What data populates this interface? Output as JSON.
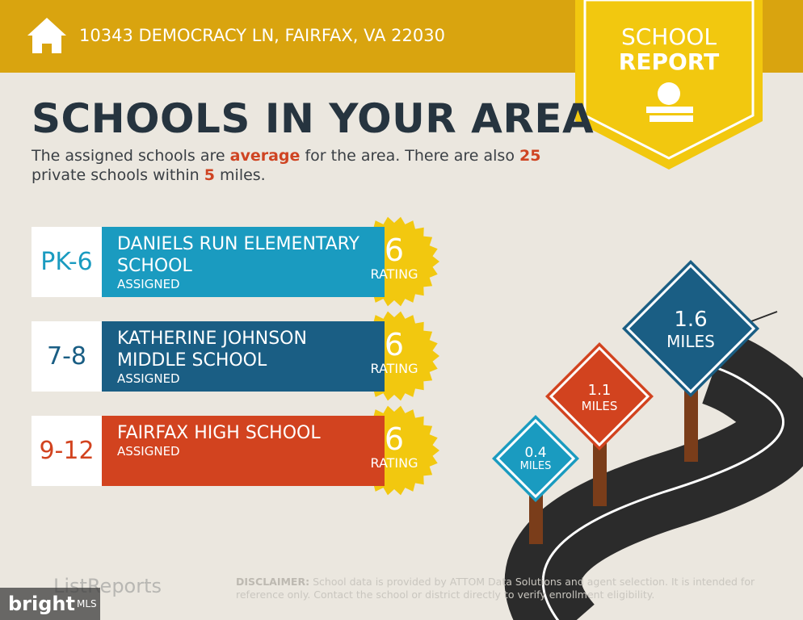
{
  "header": {
    "address": "10343 DEMOCRACY LN, FAIRFAX, VA 22030"
  },
  "badge": {
    "line1": "SCHOOL",
    "line2": "REPORT"
  },
  "title": "SCHOOLS IN YOUR AREA",
  "summary": {
    "text1": "The assigned schools are",
    "quality": "average",
    "text2": "for the area. There are also",
    "private_count": 25,
    "text3": "private schools within",
    "radius": 5,
    "text4": "miles."
  },
  "schools": [
    {
      "grades": "PK-6",
      "name": "DANIELS RUN ELEMENTARY SCHOOL",
      "status": "ASSIGNED",
      "rating": 6,
      "rating_label": "RATING"
    },
    {
      "grades": "7-8",
      "name": "KATHERINE JOHNSON MIDDLE SCHOOL",
      "status": "ASSIGNED",
      "rating": 6,
      "rating_label": "RATING"
    },
    {
      "grades": "9-12",
      "name": "FAIRFAX HIGH SCHOOL",
      "status": "ASSIGNED",
      "rating": 6,
      "rating_label": "RATING"
    }
  ],
  "signs": [
    {
      "distance": 0.4,
      "unit": "MILES"
    },
    {
      "distance": 1.1,
      "unit": "MILES"
    },
    {
      "distance": 1.6,
      "unit": "MILES"
    }
  ],
  "footer": {
    "logo": "ListReports",
    "disclaimer_label": "DISCLAIMER:",
    "disclaimer": "School data is provided by ATTOM Data Solutions and agent selection. It is intended for reference only. Contact the school or district directly to verify enrollment eligibility."
  },
  "watermark": {
    "brand": "bright",
    "suffix": "MLS"
  }
}
